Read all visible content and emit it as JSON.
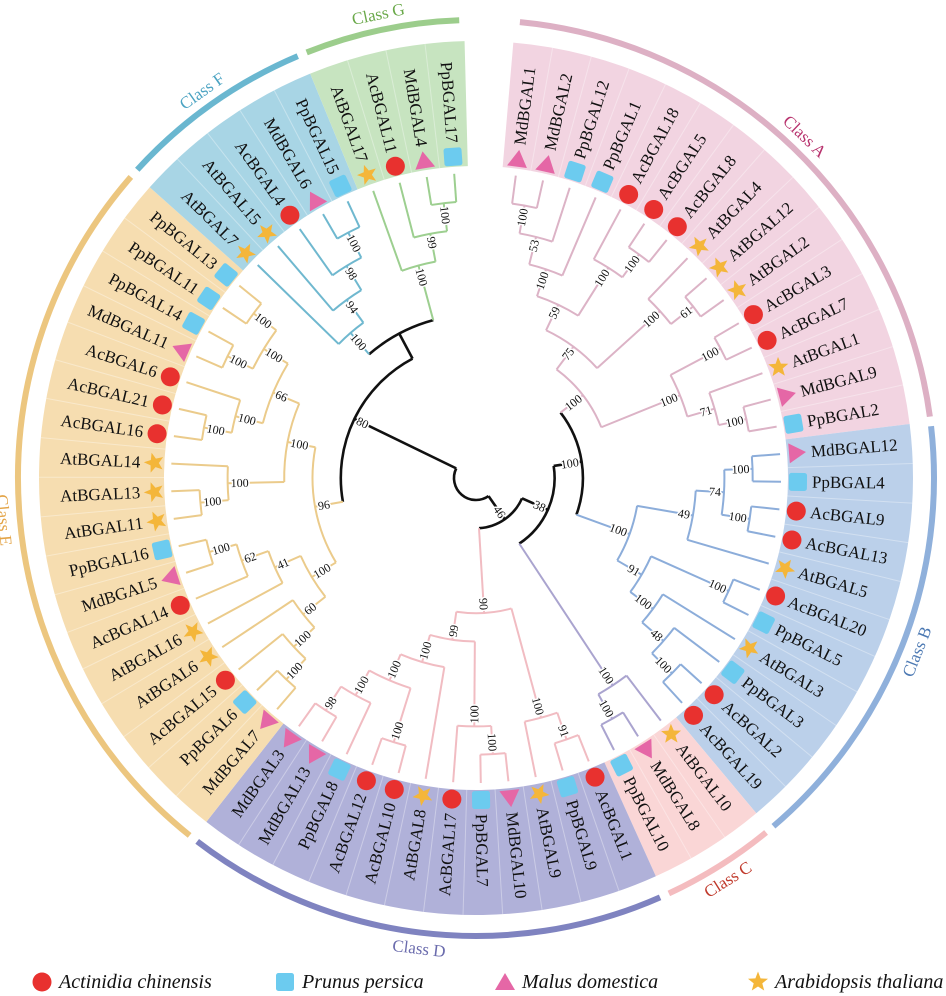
{
  "species_legend": [
    {
      "prefix": "Ac",
      "symbol": "circle",
      "label": "Actinidia chinensis",
      "color": "#e8312f"
    },
    {
      "prefix": "Pp",
      "symbol": "square",
      "label": "Prunus persica",
      "color": "#6ccbef"
    },
    {
      "prefix": "Md",
      "symbol": "triangle",
      "label": "Malus domestica",
      "color": "#e567a6"
    },
    {
      "prefix": "At",
      "symbol": "star",
      "label": "Arabidopsis thaliana",
      "color": "#f4b63a"
    }
  ],
  "backbone_color": "#111111",
  "backbone": [
    "",
    [
      46,
      [
        38,
        [
          100,
          "#0",
          "#1"
        ],
        "#2"
      ],
      "#3"
    ],
    [
      80,
      "#4",
      [
        "",
        "#5",
        "#6"
      ]
    ]
  ],
  "classes": [
    {
      "label": "Class A",
      "wedge": "#f2d4e1",
      "arc": "#ddb0c4",
      "branch": "#dcb3c6",
      "text": "#b8336e",
      "tree": [
        100,
        [
          75,
          [
            59,
            [
              100,
              [
                53,
                [
                  100,
                  "MdBGAL1",
                  "MdBGAL2"
                ],
                "PpBGAL12"
              ],
              "PpBGAL1"
            ],
            [
              100,
              "AcBGAL18",
              [
                100,
                "AcBGAL5",
                "AcBGAL8"
              ]
            ]
          ],
          [
            100,
            "AtBGAL4",
            [
              61,
              "AtBGAL12",
              "AtBGAL2"
            ]
          ]
        ],
        [
          100,
          [
            100,
            "AcBGAL3",
            "AcBGAL7"
          ],
          [
            71,
            "AtBGAL1",
            [
              100,
              "MdBGAL9",
              "PpBGAL2"
            ]
          ]
        ]
      ]
    },
    {
      "label": "Class B",
      "wedge": "#bbd0ea",
      "arc": "#8fb0db",
      "branch": "#8cadda",
      "text": "#4c79b3",
      "tree": [
        100,
        [
          49,
          [
            74,
            [
              100,
              "MdBGAL12",
              "PpBGAL4"
            ],
            [
              100,
              "AcBGAL9",
              "AcBGAL13"
            ]
          ],
          "AtBGAL5"
        ],
        [
          91,
          [
            100,
            "AcBGAL20",
            "PpBGAL5"
          ],
          [
            100,
            "AtBGAL3",
            [
              48,
              "PpBGAL3",
              [
                100,
                "AcBGAL2",
                "AcBGAL19"
              ]
            ]
          ]
        ]
      ]
    },
    {
      "label": "Class C",
      "wedge": "#fad6d6",
      "arc": "#f4bcbf",
      "branch": "#aaa4cf",
      "text": "#c0392b",
      "tree": [
        100,
        "AtBGAL10",
        [
          100,
          "MdBGAL8",
          "PpBGAL10"
        ]
      ]
    },
    {
      "label": "Class D",
      "wedge": "#b0b1d9",
      "arc": "#7f83c0",
      "branch": "#f1bcc2",
      "text": "#6b6cad",
      "tree": [
        90,
        [
          100,
          [
            91,
            "AcBGAL1",
            "PpBGAL9"
          ],
          "AtBGAL9"
        ],
        [
          99,
          [
            100,
            [
              100,
              "MdBGAL10",
              "PpBGAL7"
            ],
            "AcBGAL17"
          ],
          [
            100,
            "AtBGAL8",
            [
              100,
              [
                100,
                "AcBGAL10",
                "AcBGAL12"
              ],
              [
                100,
                "PpBGAL8",
                [
                  98,
                  "MdBGAL13",
                  "MdBGAL3"
                ]
              ]
            ]
          ]
        ]
      ]
    },
    {
      "label": "Class E",
      "wedge": "#f6ddb0",
      "arc": "#ecc67f",
      "branch": "#ebcb8b",
      "text": "#e3a447",
      "tree": [
        96,
        [
          100,
          [
            60,
            [
              100,
              [
                100,
                "MdBGAL7",
                "PpBGAL6"
              ],
              "AcBGAL15"
            ],
            "AtBGAL6"
          ],
          [
            41,
            "AtBGAL16",
            [
              62,
              "AcBGAL14",
              [
                100,
                "MdBGAL5",
                "PpBGAL16"
              ]
            ]
          ]
        ],
        [
          100,
          [
            100,
            [
              100,
              "AtBGAL11",
              "AtBGAL13"
            ],
            "AtBGAL14"
          ],
          [
            66,
            [
              100,
              [
                100,
                "AcBGAL16",
                "AcBGAL21"
              ],
              "AcBGAL6"
            ],
            [
              100,
              [
                100,
                "MdBGAL11",
                "PpBGAL14"
              ],
              [
                100,
                "PpBGAL11",
                "PpBGAL13"
              ]
            ]
          ]
        ]
      ]
    },
    {
      "label": "Class F",
      "wedge": "#a8d5e5",
      "arc": "#6ab7d0",
      "branch": "#6fb8cf",
      "text": "#4ba3c2",
      "tree": [
        100,
        "AtBGAL7",
        [
          94,
          "AtBGAL15",
          [
            98,
            "AcBGAL4",
            [
              100,
              "MdBGAL6",
              "PpBGAL15"
            ]
          ]
        ]
      ]
    },
    {
      "label": "Class G",
      "wedge": "#c7e4c0",
      "arc": "#9ccd8c",
      "branch": "#9dcf90",
      "text": "#6aa94a",
      "tree": [
        100,
        "AtBGAL17",
        [
          99,
          "AcBGAL11",
          [
            100,
            "MdBGAL4",
            "PpBGAL17"
          ]
        ]
      ]
    }
  ]
}
